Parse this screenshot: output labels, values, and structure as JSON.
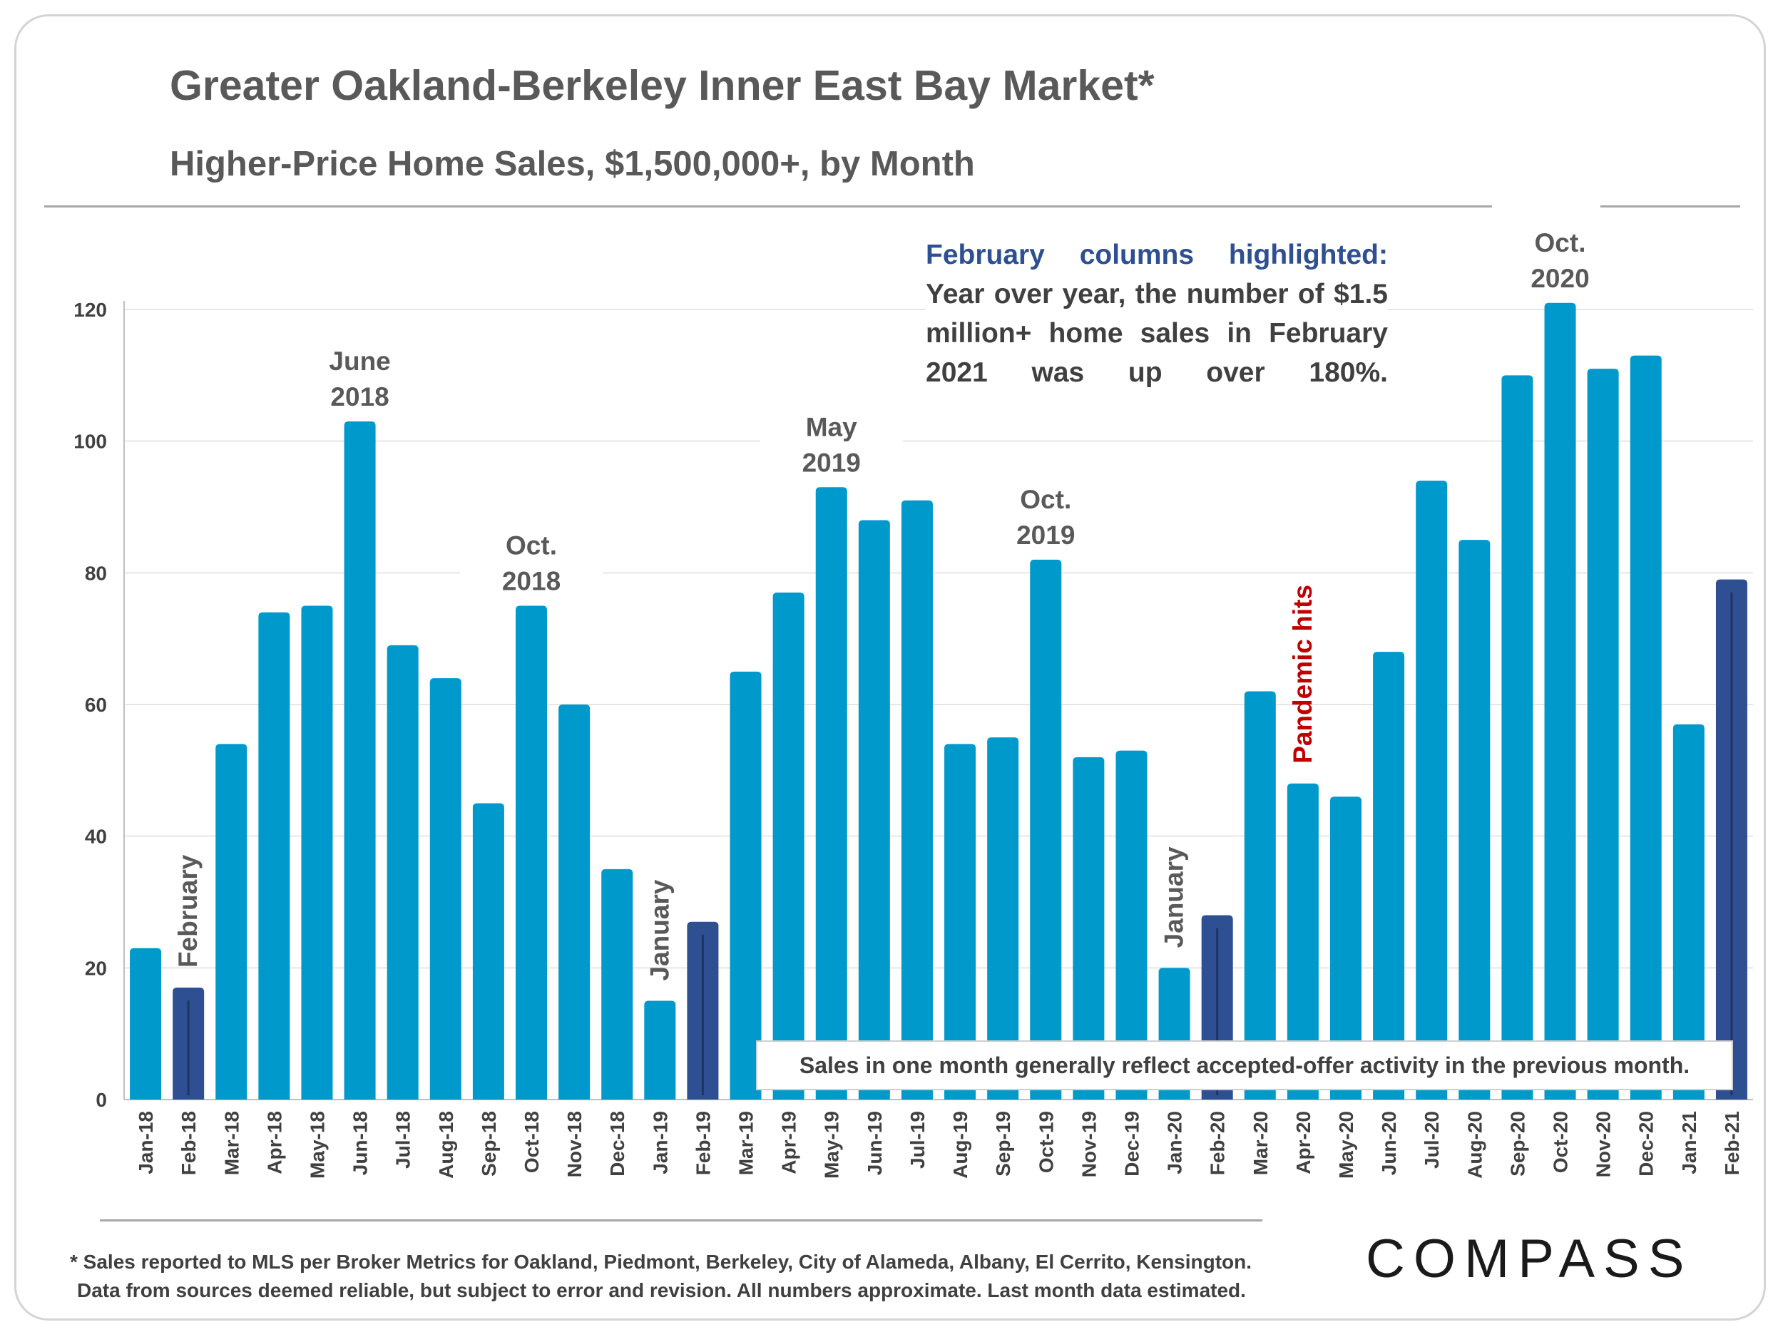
{
  "title": "Greater Oakland-Berkeley Inner East Bay Market*",
  "subtitle": "Higher-Price Home Sales, $1,500,000+, by Month",
  "callout": {
    "heading": "February columns highlighted:",
    "body": "Year over year, the number of $1.5 million+ home sales in February 2021 was up over 180%."
  },
  "note": "Sales in one month generally reflect accepted-offer activity in the previous month.",
  "footnote": {
    "line1": "* Sales reported to MLS per Broker Metrics for Oakland, Piedmont, Berkeley, City of Alameda, Albany, El Cerrito, Kensington.",
    "line2": "Data from sources deemed reliable, but subject to error and revision. All numbers approximate. Last month data estimated."
  },
  "logo": "COMPASS",
  "colors": {
    "bar": "#0099cc",
    "highlight": "#2e4f91",
    "annotation": "#595959",
    "pandemic": "#c00000"
  },
  "chart_data": {
    "type": "bar",
    "title": "Greater Oakland-Berkeley Inner East Bay Market*",
    "subtitle": "Higher-Price Home Sales, $1,500,000+, by Month",
    "ylim": [
      0,
      120
    ],
    "yticks": [
      0,
      20,
      40,
      60,
      80,
      100,
      120
    ],
    "grid": true,
    "categories": [
      "Jan-18",
      "Feb-18",
      "Mar-18",
      "Apr-18",
      "May-18",
      "Jun-18",
      "Jul-18",
      "Aug-18",
      "Sep-18",
      "Oct-18",
      "Nov-18",
      "Dec-18",
      "Jan-19",
      "Feb-19",
      "Mar-19",
      "Apr-19",
      "May-19",
      "Jun-19",
      "Jul-19",
      "Aug-19",
      "Sep-19",
      "Oct-19",
      "Nov-19",
      "Dec-19",
      "Jan-20",
      "Feb-20",
      "Mar-20",
      "Apr-20",
      "May-20",
      "Jun-20",
      "Jul-20",
      "Aug-20",
      "Sep-20",
      "Oct-20",
      "Nov-20",
      "Dec-20",
      "Jan-21",
      "Feb-21"
    ],
    "values": [
      23,
      17,
      54,
      74,
      75,
      103,
      69,
      64,
      45,
      75,
      60,
      35,
      15,
      27,
      65,
      77,
      93,
      88,
      91,
      54,
      55,
      82,
      52,
      53,
      20,
      28,
      62,
      48,
      46,
      68,
      94,
      85,
      110,
      121,
      111,
      113,
      57,
      79
    ],
    "highlighted": [
      "Feb-18",
      "Feb-19",
      "Feb-20",
      "Feb-21"
    ],
    "annotations": [
      {
        "category": "Jun-18",
        "lines": [
          "June",
          "2018"
        ]
      },
      {
        "category": "Oct-18",
        "lines": [
          "Oct.",
          "2018"
        ]
      },
      {
        "category": "May-19",
        "lines": [
          "May",
          "2019"
        ]
      },
      {
        "category": "Oct-19",
        "lines": [
          "Oct.",
          "2019"
        ]
      },
      {
        "category": "Oct-20",
        "lines": [
          "Oct.",
          "2020"
        ]
      }
    ],
    "vertical_labels": [
      {
        "category": "Feb-18",
        "text": "February",
        "color": "annotation"
      },
      {
        "category": "Jan-19",
        "text": "January",
        "color": "annotation"
      },
      {
        "category": "Jan-20",
        "text": "January",
        "color": "annotation"
      },
      {
        "category": "Apr-20",
        "text": "Pandemic hits",
        "color": "pandemic"
      }
    ]
  }
}
